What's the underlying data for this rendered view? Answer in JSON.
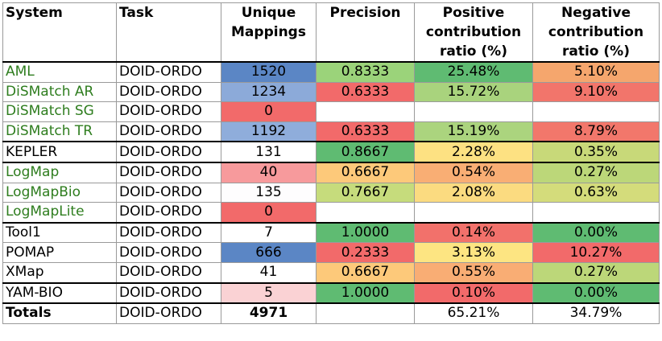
{
  "headers": {
    "system": "System",
    "task": "Task",
    "mappings": [
      "Unique",
      "Mappings"
    ],
    "precision": "Precision",
    "positive": [
      "Positive",
      "contribution",
      "ratio (%)"
    ],
    "negative": [
      "Negative",
      "contribution",
      "ratio (%)"
    ]
  },
  "rows": [
    {
      "system": "AML",
      "task": "DOID-ORDO",
      "mappings": "1520",
      "precision": "0.8333",
      "positive": "25.48%",
      "negative": "5.10%"
    },
    {
      "system": "DiSMatch AR",
      "task": "DOID-ORDO",
      "mappings": "1234",
      "precision": "0.6333",
      "positive": "15.72%",
      "negative": "9.10%"
    },
    {
      "system": "DiSMatch SG",
      "task": "DOID-ORDO",
      "mappings": "0",
      "precision": "",
      "positive": "",
      "negative": ""
    },
    {
      "system": "DiSMatch TR",
      "task": "DOID-ORDO",
      "mappings": "1192",
      "precision": "0.6333",
      "positive": "15.19%",
      "negative": "8.79%"
    },
    {
      "system": "KEPLER",
      "task": "DOID-ORDO",
      "mappings": "131",
      "precision": "0.8667",
      "positive": "2.28%",
      "negative": "0.35%"
    },
    {
      "system": "LogMap",
      "task": "DOID-ORDO",
      "mappings": "40",
      "precision": "0.6667",
      "positive": "0.54%",
      "negative": "0.27%"
    },
    {
      "system": "LogMapBio",
      "task": "DOID-ORDO",
      "mappings": "135",
      "precision": "0.7667",
      "positive": "2.08%",
      "negative": "0.63%"
    },
    {
      "system": "LogMapLite",
      "task": "DOID-ORDO",
      "mappings": "0",
      "precision": "",
      "positive": "",
      "negative": ""
    },
    {
      "system": "Tool1",
      "task": "DOID-ORDO",
      "mappings": "7",
      "precision": "1.0000",
      "positive": "0.14%",
      "negative": "0.00%"
    },
    {
      "system": "POMAP",
      "task": "DOID-ORDO",
      "mappings": "666",
      "precision": "0.2333",
      "positive": "3.13%",
      "negative": "10.27%"
    },
    {
      "system": "XMap",
      "task": "DOID-ORDO",
      "mappings": "41",
      "precision": "0.6667",
      "positive": "0.55%",
      "negative": "0.27%"
    },
    {
      "system": "YAM-BIO",
      "task": "DOID-ORDO",
      "mappings": "5",
      "precision": "1.0000",
      "positive": "0.10%",
      "negative": "0.00%"
    }
  ],
  "totals": {
    "system": "Totals",
    "task": "DOID-ORDO",
    "mappings": "4971",
    "precision": "",
    "positive": "65.21%",
    "negative": "34.79%"
  },
  "colors": {
    "system_green": "#2e7d1e",
    "rows": [
      {
        "system": "green",
        "mappings": "#5b86c5",
        "precision": "#9bd37a",
        "positive": "#5fbb72",
        "negative": "#f5a66d"
      },
      {
        "system": "green",
        "mappings": "#8caad9",
        "precision": "#f26a6a",
        "positive": "#a9d37d",
        "negative": "#f2756b"
      },
      {
        "system": "green",
        "mappings": "#f26a6a",
        "precision": "#ffffff",
        "positive": "#ffffff",
        "negative": "#ffffff"
      },
      {
        "system": "green",
        "mappings": "#8faddb",
        "precision": "#f26a6a",
        "positive": "#abd47e",
        "negative": "#f2776b"
      },
      {
        "system": "black",
        "mappings": "#ffffff",
        "precision": "#5fbb72",
        "positive": "#fde182",
        "negative": "#c8d979"
      },
      {
        "system": "green",
        "mappings": "#f79a9c",
        "precision": "#fdc97a",
        "positive": "#f9ae74",
        "negative": "#bcd779"
      },
      {
        "system": "green",
        "mappings": "#fefdfe",
        "precision": "#c6dc7c",
        "positive": "#fbdb80",
        "negative": "#d4dc7b"
      },
      {
        "system": "green",
        "mappings": "#f26a6a",
        "precision": "#ffffff",
        "positive": "#ffffff",
        "negative": "#ffffff"
      },
      {
        "system": "black",
        "mappings": "#ffffff",
        "precision": "#5fbb72",
        "positive": "#f2716b",
        "negative": "#5fbb72"
      },
      {
        "system": "black",
        "mappings": "#5b86c5",
        "precision": "#f26a6a",
        "positive": "#fde582",
        "negative": "#f26a6a"
      },
      {
        "system": "black",
        "mappings": "#ffffff",
        "precision": "#fdc97a",
        "positive": "#f9ad74",
        "negative": "#bcd779"
      },
      {
        "system": "black",
        "mappings": "#fad2d4",
        "precision": "#5fbb72",
        "positive": "#f26a6a",
        "negative": "#5fbb72"
      }
    ]
  }
}
